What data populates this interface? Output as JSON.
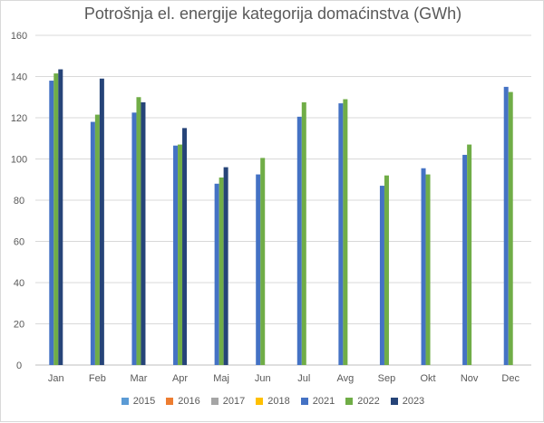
{
  "chart_data": {
    "type": "bar",
    "title": "Potrošnja el. energije kategorija domaćinstva (GWh)",
    "categories": [
      "Jan",
      "Feb",
      "Mar",
      "Apr",
      "Maj",
      "Jun",
      "Jul",
      "Avg",
      "Sep",
      "Okt",
      "Nov",
      "Dec"
    ],
    "ylim": [
      0,
      160
    ],
    "yticks": [
      0,
      20,
      40,
      60,
      80,
      100,
      120,
      140,
      160
    ],
    "grid": true,
    "legend_position": "bottom",
    "series": [
      {
        "name": "2015",
        "color": "#5b9bd5",
        "values": [
          null,
          null,
          null,
          null,
          null,
          null,
          null,
          null,
          null,
          null,
          null,
          null
        ]
      },
      {
        "name": "2016",
        "color": "#ed7d31",
        "values": [
          null,
          null,
          null,
          null,
          null,
          null,
          null,
          null,
          null,
          null,
          null,
          null
        ]
      },
      {
        "name": "2017",
        "color": "#a5a5a5",
        "values": [
          null,
          null,
          null,
          null,
          null,
          null,
          null,
          null,
          null,
          null,
          null,
          null
        ]
      },
      {
        "name": "2018",
        "color": "#ffc000",
        "values": [
          null,
          null,
          null,
          null,
          null,
          null,
          null,
          null,
          null,
          null,
          null,
          null
        ]
      },
      {
        "name": "2021",
        "color": "#4472c4",
        "values": [
          138,
          118,
          122.5,
          106.5,
          88,
          92.5,
          120.5,
          127,
          87,
          95.5,
          102,
          135
        ]
      },
      {
        "name": "2022",
        "color": "#70ad47",
        "values": [
          141.5,
          121.5,
          130,
          107,
          91,
          100.5,
          127.5,
          129,
          92,
          92.5,
          107,
          132.5
        ]
      },
      {
        "name": "2023",
        "color": "#264478",
        "values": [
          143.5,
          139,
          127.5,
          115,
          96,
          null,
          null,
          null,
          null,
          null,
          null,
          null
        ]
      }
    ]
  }
}
